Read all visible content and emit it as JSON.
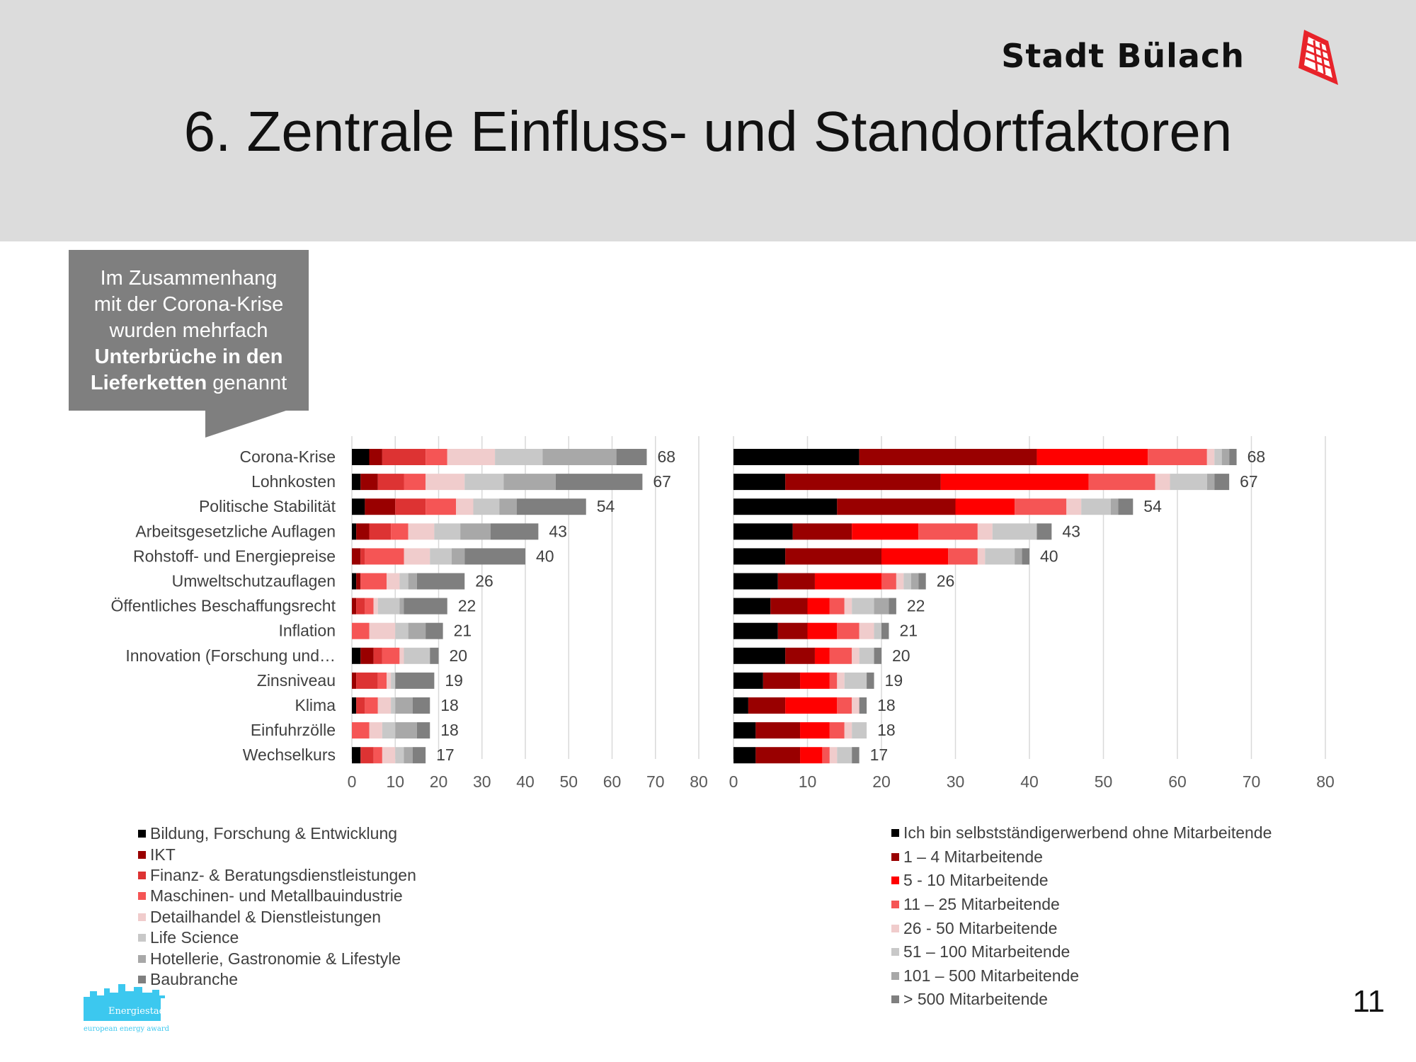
{
  "slide": {
    "title": "6. Zentrale Einfluss- und Standortfaktoren",
    "brand": "Stadt Bülach",
    "page_number": "11",
    "callout": {
      "line1": "Im Zusammenhang",
      "line2": "mit der Corona-Krise",
      "line3": "wurden mehrfach",
      "bold1": "Unterbrüche in den",
      "bold2": "Lieferketten",
      "tail": " genannt"
    },
    "energy_logo": {
      "name": "Energiestadt",
      "tagline": "european energy award"
    }
  },
  "colors": [
    "#000000",
    "#990000",
    "#dd3333",
    "#f55555",
    "#f0cccc",
    "#c8c8c8",
    "#a8a8a8",
    "#7f7f7f"
  ],
  "colors_size": [
    "#000000",
    "#990000",
    "#ff0000",
    "#f55555",
    "#f0cccc",
    "#c8c8c8",
    "#a8a8a8",
    "#7f7f7f"
  ],
  "chart_data": [
    {
      "type": "bar",
      "orientation": "horizontal",
      "stacked": true,
      "categories": [
        "Corona-Krise",
        "Lohnkosten",
        "Politische Stabilität",
        "Arbeitsgesetzliche Auflagen",
        "Rohstoff- und Energiepreise",
        "Umweltschutzauflagen",
        "Öffentliches Beschaffungsrecht",
        "Inflation",
        "Innovation (Forschung und…",
        "Zinsniveau",
        "Klima",
        "Einfuhrzölle",
        "Wechselkurs"
      ],
      "totals": [
        68,
        67,
        54,
        43,
        40,
        26,
        22,
        21,
        20,
        19,
        18,
        18,
        17
      ],
      "xlim": [
        0,
        80
      ],
      "xticks": [
        "0",
        "10",
        "20",
        "30",
        "40",
        "50",
        "60",
        "70",
        "80"
      ],
      "grid": true,
      "series": [
        {
          "name": "Bildung, Forschung & Entwicklung",
          "values": [
            4,
            2,
            3,
            1,
            0,
            1,
            0,
            0,
            2,
            0,
            1,
            0,
            2
          ]
        },
        {
          "name": "IKT",
          "values": [
            3,
            4,
            7,
            3,
            2,
            1,
            1,
            0,
            3,
            1,
            0,
            0,
            0
          ]
        },
        {
          "name": "Finanz- & Beratungsdienstleistungen",
          "values": [
            10,
            6,
            7,
            5,
            1,
            0,
            2,
            0,
            2,
            5,
            2,
            0,
            3
          ]
        },
        {
          "name": "Maschinen- und Metallbauindustrie",
          "values": [
            5,
            5,
            7,
            4,
            9,
            6,
            2,
            4,
            4,
            2,
            3,
            4,
            2
          ]
        },
        {
          "name": "Detailhandel & Dienstleistungen",
          "values": [
            11,
            9,
            4,
            6,
            6,
            3,
            1,
            6,
            1,
            1,
            3,
            3,
            3
          ]
        },
        {
          "name": "Life Science",
          "values": [
            11,
            9,
            6,
            6,
            5,
            2,
            5,
            3,
            6,
            1,
            1,
            3,
            2
          ]
        },
        {
          "name": "Hotellerie, Gastronomie & Lifestyle",
          "values": [
            17,
            12,
            4,
            7,
            3,
            2,
            1,
            4,
            0,
            0,
            4,
            5,
            2
          ]
        },
        {
          "name": "Baubranche",
          "values": [
            7,
            20,
            16,
            11,
            14,
            11,
            10,
            4,
            2,
            9,
            4,
            3,
            3
          ]
        }
      ]
    },
    {
      "type": "bar",
      "orientation": "horizontal",
      "stacked": true,
      "categories": [
        "Corona-Krise",
        "Lohnkosten",
        "Politische Stabilität",
        "Arbeitsgesetzliche Auflagen",
        "Rohstoff- und Energiepreise",
        "Umweltschutzauflagen",
        "Öffentliches Beschaffungsrecht",
        "Inflation",
        "Innovation (Forschung und…",
        "Zinsniveau",
        "Klima",
        "Einfuhrzölle",
        "Wechselkurs"
      ],
      "totals": [
        68,
        67,
        54,
        43,
        40,
        26,
        22,
        21,
        20,
        19,
        18,
        18,
        17
      ],
      "xlim": [
        0,
        80
      ],
      "xticks": [
        "0",
        "10",
        "20",
        "30",
        "40",
        "50",
        "60",
        "70",
        "80"
      ],
      "grid": true,
      "series": [
        {
          "name": "Ich bin selbstständigerwerbend ohne Mitarbeitende",
          "values": [
            17,
            7,
            14,
            8,
            7,
            6,
            5,
            6,
            7,
            4,
            2,
            3,
            3
          ]
        },
        {
          "name": "1 – 4 Mitarbeitende",
          "values": [
            24,
            21,
            16,
            8,
            13,
            5,
            5,
            4,
            4,
            5,
            5,
            6,
            6
          ]
        },
        {
          "name": "5 - 10 Mitarbeitende",
          "values": [
            15,
            20,
            8,
            9,
            9,
            9,
            3,
            4,
            2,
            4,
            7,
            4,
            3
          ]
        },
        {
          "name": "11 – 25 Mitarbeitende",
          "values": [
            8,
            9,
            7,
            8,
            4,
            2,
            2,
            3,
            3,
            1,
            2,
            2,
            1
          ]
        },
        {
          "name": "26 - 50 Mitarbeitende",
          "values": [
            1,
            2,
            2,
            2,
            1,
            1,
            1,
            2,
            1,
            1,
            1,
            1,
            1
          ]
        },
        {
          "name": "51 – 100 Mitarbeitende",
          "values": [
            1,
            5,
            4,
            6,
            4,
            1,
            3,
            1,
            2,
            3,
            0,
            2,
            2
          ]
        },
        {
          "name": "101 – 500 Mitarbeitende",
          "values": [
            1,
            1,
            1,
            0,
            1,
            1,
            2,
            0,
            0,
            0,
            0,
            0,
            0
          ]
        },
        {
          "name": "> 500 Mitarbeitende",
          "values": [
            1,
            2,
            2,
            2,
            1,
            1,
            1,
            1,
            1,
            1,
            1,
            0,
            1
          ]
        }
      ]
    }
  ]
}
